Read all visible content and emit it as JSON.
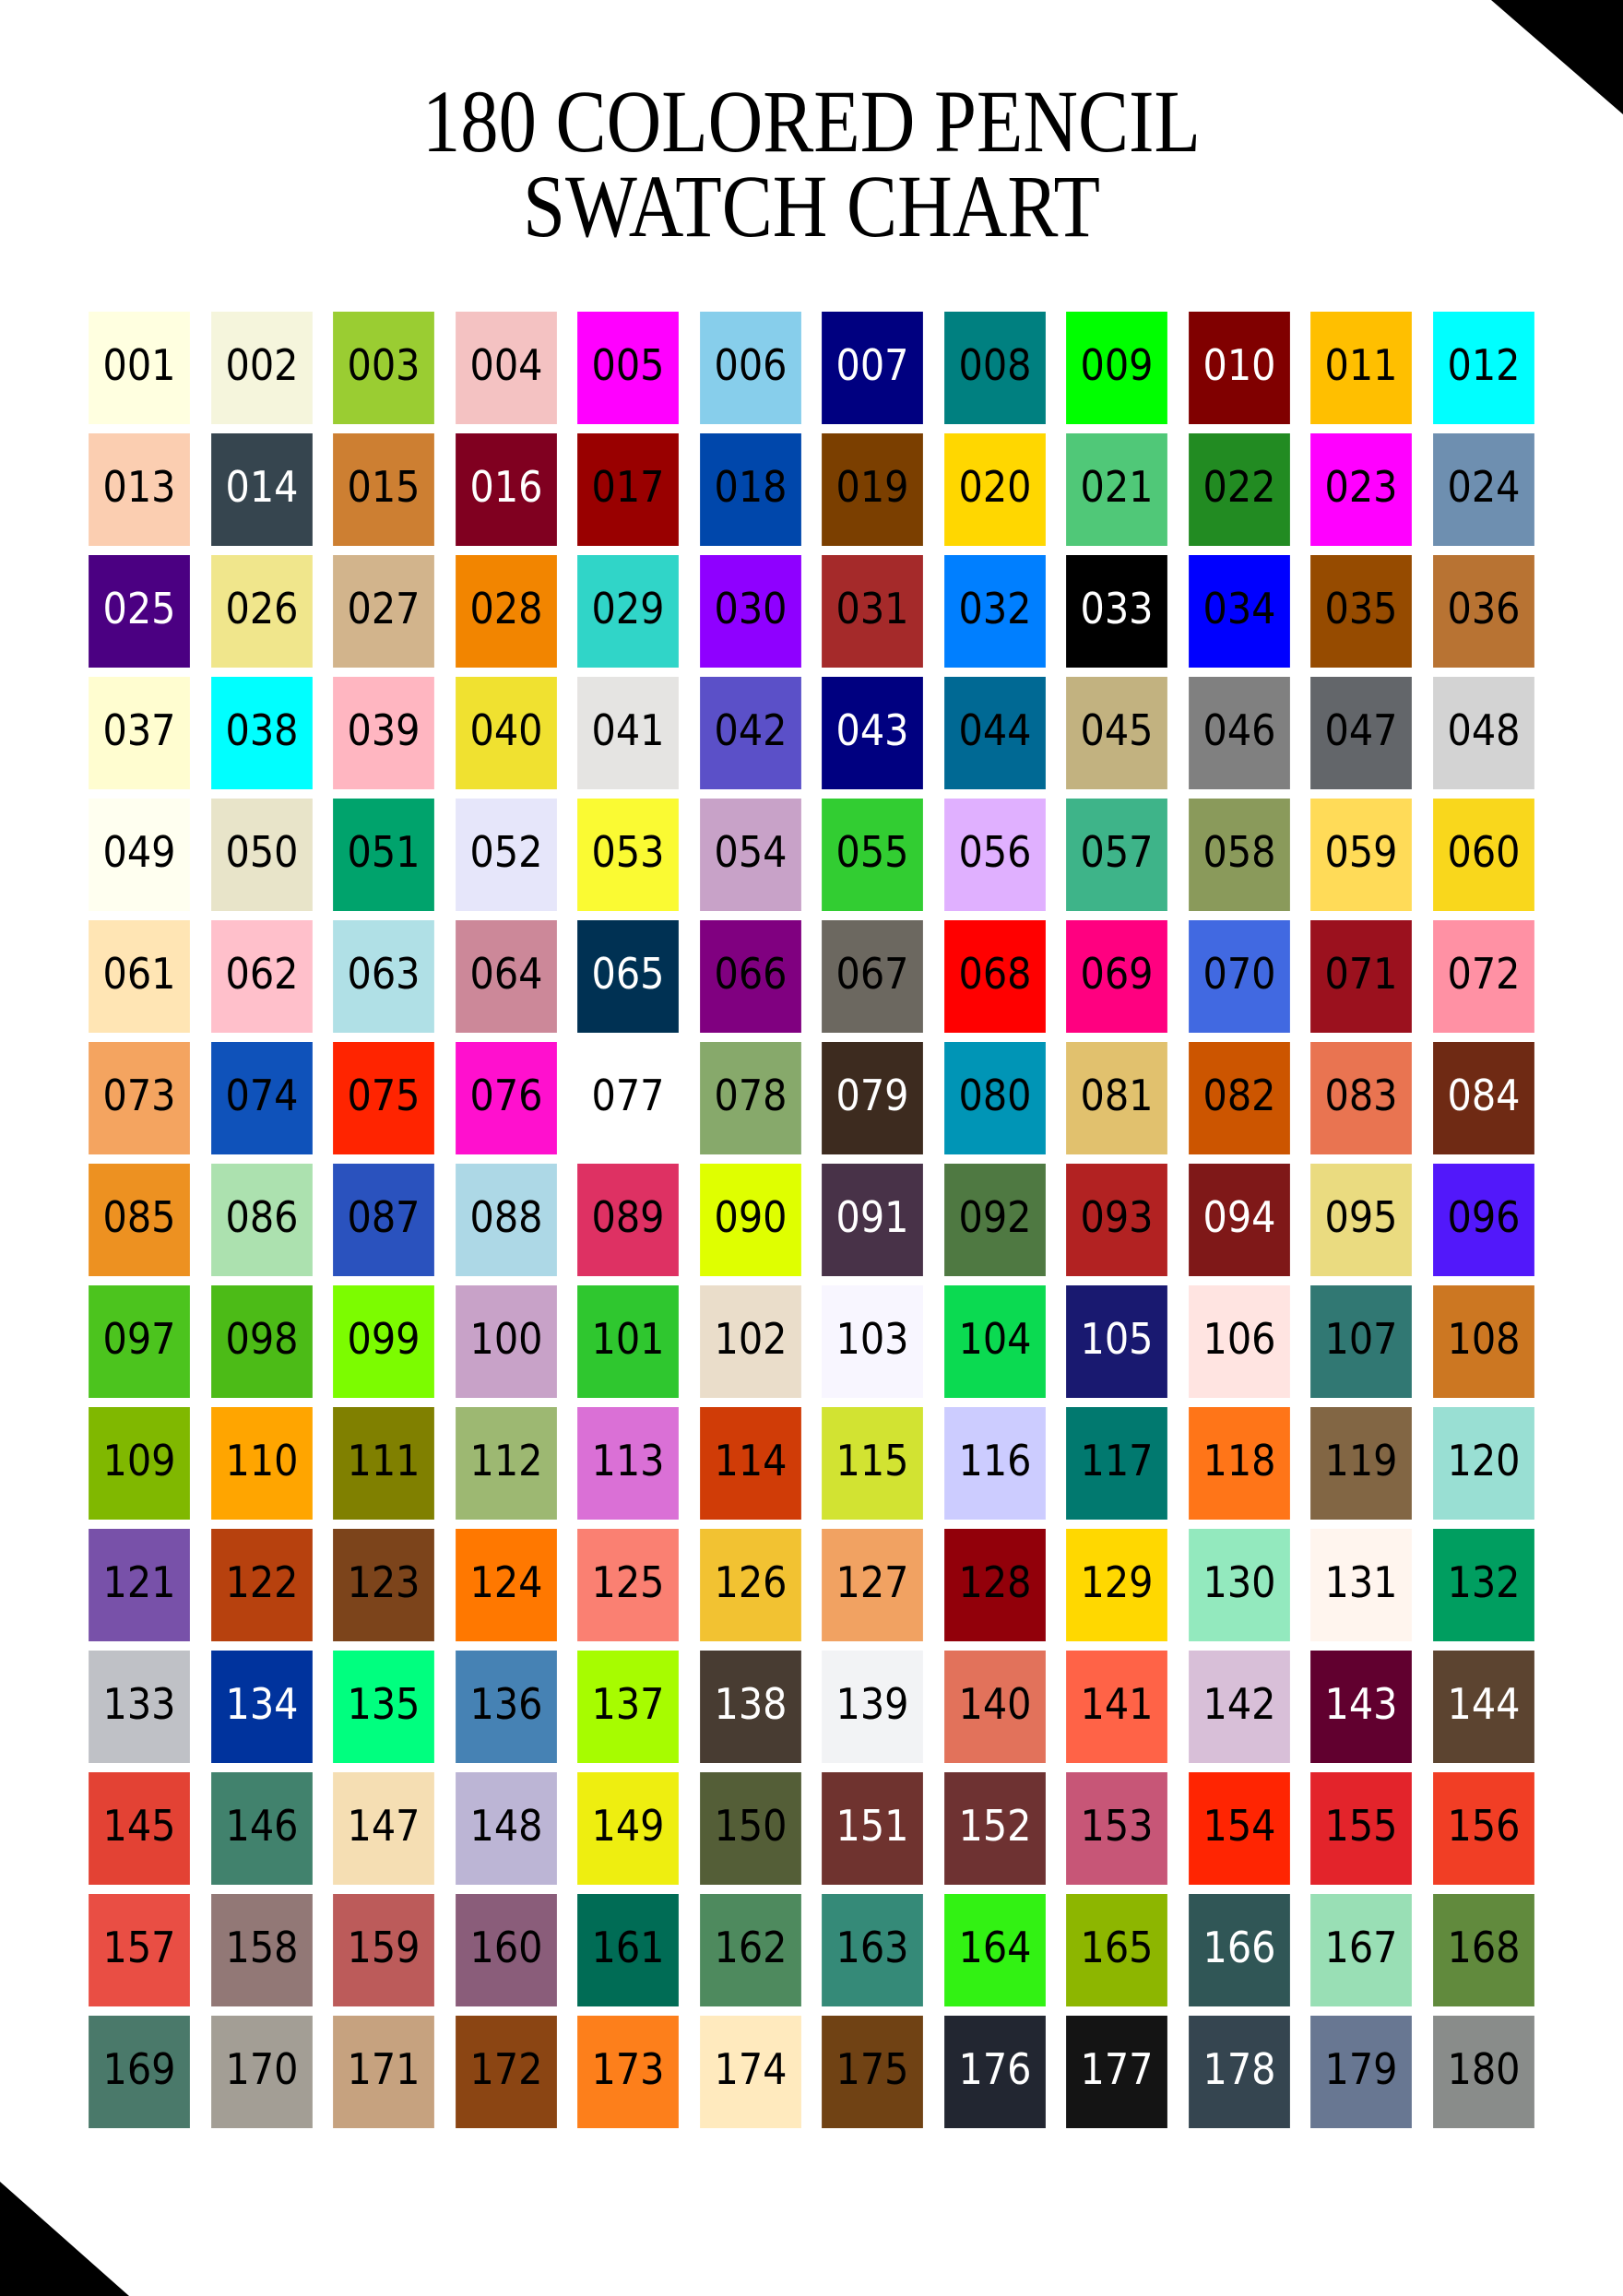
{
  "title": {
    "line1": "180 COLORED PENCIL",
    "line2": "SWATCH CHART"
  },
  "white_label_swatches": [
    "007",
    "010",
    "014",
    "016",
    "025",
    "033",
    "043",
    "065",
    "079",
    "084",
    "091",
    "094",
    "105",
    "134",
    "138",
    "143",
    "144",
    "151",
    "152",
    "166",
    "176",
    "177",
    "178"
  ],
  "swatches": [
    {
      "label": "001",
      "color": "#FFFFE0"
    },
    {
      "label": "002",
      "color": "#F5F5DC"
    },
    {
      "label": "003",
      "color": "#9ACD32"
    },
    {
      "label": "004",
      "color": "#F4C2C2"
    },
    {
      "label": "005",
      "color": "#FF00FF"
    },
    {
      "label": "006",
      "color": "#87CEEB"
    },
    {
      "label": "007",
      "color": "#000080"
    },
    {
      "label": "008",
      "color": "#008080"
    },
    {
      "label": "009",
      "color": "#00FF00"
    },
    {
      "label": "010",
      "color": "#800000"
    },
    {
      "label": "011",
      "color": "#FFBF00"
    },
    {
      "label": "012",
      "color": "#00FFFF"
    },
    {
      "label": "013",
      "color": "#FBCEB1"
    },
    {
      "label": "014",
      "color": "#36454F"
    },
    {
      "label": "015",
      "color": "#CD7F32"
    },
    {
      "label": "016",
      "color": "#800020"
    },
    {
      "label": "017",
      "color": "#990000"
    },
    {
      "label": "018",
      "color": "#0047AB"
    },
    {
      "label": "019",
      "color": "#7B3F00"
    },
    {
      "label": "020",
      "color": "#FFD700"
    },
    {
      "label": "021",
      "color": "#50C878"
    },
    {
      "label": "022",
      "color": "#228B22"
    },
    {
      "label": "023",
      "color": "#FF00FF"
    },
    {
      "label": "024",
      "color": "#6E8FB0"
    },
    {
      "label": "025",
      "color": "#4B0082"
    },
    {
      "label": "026",
      "color": "#F0E68C"
    },
    {
      "label": "027",
      "color": "#D2B48C"
    },
    {
      "label": "028",
      "color": "#F28500"
    },
    {
      "label": "029",
      "color": "#30D5C8"
    },
    {
      "label": "030",
      "color": "#8F00FF"
    },
    {
      "label": "031",
      "color": "#A52A2A"
    },
    {
      "label": "032",
      "color": "#007FFF"
    },
    {
      "label": "033",
      "color": "#000000"
    },
    {
      "label": "034",
      "color": "#0000FF"
    },
    {
      "label": "035",
      "color": "#964B00"
    },
    {
      "label": "036",
      "color": "#B87333"
    },
    {
      "label": "037",
      "color": "#FFFDD0"
    },
    {
      "label": "038",
      "color": "#00FFFF"
    },
    {
      "label": "039",
      "color": "#FFB6C1"
    },
    {
      "label": "040",
      "color": "#F0E130"
    },
    {
      "label": "041",
      "color": "#E5E4E2"
    },
    {
      "label": "042",
      "color": "#5B50C8"
    },
    {
      "label": "043",
      "color": "#000080"
    },
    {
      "label": "044",
      "color": "#006994"
    },
    {
      "label": "045",
      "color": "#C2B280"
    },
    {
      "label": "046",
      "color": "#808080"
    },
    {
      "label": "047",
      "color": "#63666A"
    },
    {
      "label": "048",
      "color": "#D3D3D3"
    },
    {
      "label": "049",
      "color": "#FFFFF0"
    },
    {
      "label": "050",
      "color": "#E8E4C9"
    },
    {
      "label": "051",
      "color": "#00A36C"
    },
    {
      "label": "052",
      "color": "#E6E6FA"
    },
    {
      "label": "053",
      "color": "#FAFA33"
    },
    {
      "label": "054",
      "color": "#C8A2C8"
    },
    {
      "label": "055",
      "color": "#32CD32"
    },
    {
      "label": "056",
      "color": "#E0B0FF"
    },
    {
      "label": "057",
      "color": "#3EB489"
    },
    {
      "label": "058",
      "color": "#8A9A5B"
    },
    {
      "label": "059",
      "color": "#FFDB58"
    },
    {
      "label": "060",
      "color": "#F9D71C"
    },
    {
      "label": "061",
      "color": "#FFE5B4"
    },
    {
      "label": "062",
      "color": "#FFC0CB"
    },
    {
      "label": "063",
      "color": "#B0E0E6"
    },
    {
      "label": "064",
      "color": "#CC8899"
    },
    {
      "label": "065",
      "color": "#003153"
    },
    {
      "label": "066",
      "color": "#800080"
    },
    {
      "label": "067",
      "color": "#6C6860"
    },
    {
      "label": "068",
      "color": "#FF0000"
    },
    {
      "label": "069",
      "color": "#FF0080"
    },
    {
      "label": "070",
      "color": "#4169E1"
    },
    {
      "label": "071",
      "color": "#9B111E"
    },
    {
      "label": "072",
      "color": "#FF91A4"
    },
    {
      "label": "073",
      "color": "#F4A460"
    },
    {
      "label": "074",
      "color": "#0F52BA"
    },
    {
      "label": "075",
      "color": "#FF2400"
    },
    {
      "label": "076",
      "color": "#FF10CE"
    },
    {
      "label": "077",
      "color": "#FFFFFF"
    },
    {
      "label": "078",
      "color": "#87A96B"
    },
    {
      "label": "079",
      "color": "#3D2B1F"
    },
    {
      "label": "080",
      "color": "#0095B6"
    },
    {
      "label": "081",
      "color": "#E1C16E"
    },
    {
      "label": "082",
      "color": "#CC5500"
    },
    {
      "label": "083",
      "color": "#E97451"
    },
    {
      "label": "084",
      "color": "#6F2A14"
    },
    {
      "label": "085",
      "color": "#ED9121"
    },
    {
      "label": "086",
      "color": "#ACE1AF"
    },
    {
      "label": "087",
      "color": "#2A52BE"
    },
    {
      "label": "088",
      "color": "#ADD8E6"
    },
    {
      "label": "089",
      "color": "#DE3163"
    },
    {
      "label": "090",
      "color": "#DFFF00"
    },
    {
      "label": "091",
      "color": "#483248"
    },
    {
      "label": "092",
      "color": "#4F7942"
    },
    {
      "label": "093",
      "color": "#B22222"
    },
    {
      "label": "094",
      "color": "#7F1818"
    },
    {
      "label": "095",
      "color": "#EADB80"
    },
    {
      "label": "096",
      "color": "#5218FA"
    },
    {
      "label": "097",
      "color": "#4CC41E"
    },
    {
      "label": "098",
      "color": "#4CBB17"
    },
    {
      "label": "099",
      "color": "#7CFC00"
    },
    {
      "label": "100",
      "color": "#C8A2C8"
    },
    {
      "label": "101",
      "color": "#2FC72F"
    },
    {
      "label": "102",
      "color": "#EADDCA"
    },
    {
      "label": "103",
      "color": "#F8F6FF"
    },
    {
      "label": "104",
      "color": "#0BDA51"
    },
    {
      "label": "105",
      "color": "#191970"
    },
    {
      "label": "106",
      "color": "#FFE4E1"
    },
    {
      "label": "107",
      "color": "#317873"
    },
    {
      "label": "108",
      "color": "#CC7722"
    },
    {
      "label": "109",
      "color": "#80B800"
    },
    {
      "label": "110",
      "color": "#FFA500"
    },
    {
      "label": "111",
      "color": "#808000"
    },
    {
      "label": "112",
      "color": "#9DB872"
    },
    {
      "label": "113",
      "color": "#DA70D6"
    },
    {
      "label": "114",
      "color": "#D03C07"
    },
    {
      "label": "115",
      "color": "#D2E332"
    },
    {
      "label": "116",
      "color": "#CCCCFF"
    },
    {
      "label": "117",
      "color": "#01796F"
    },
    {
      "label": "118",
      "color": "#FF7518"
    },
    {
      "label": "119",
      "color": "#826644"
    },
    {
      "label": "120",
      "color": "#99DFD3"
    },
    {
      "label": "121",
      "color": "#7851A9"
    },
    {
      "label": "122",
      "color": "#B7410E"
    },
    {
      "label": "123",
      "color": "#7C441B"
    },
    {
      "label": "124",
      "color": "#FF7800"
    },
    {
      "label": "125",
      "color": "#FA8072"
    },
    {
      "label": "126",
      "color": "#F2C232"
    },
    {
      "label": "127",
      "color": "#F1A262"
    },
    {
      "label": "128",
      "color": "#92000A"
    },
    {
      "label": "129",
      "color": "#FFD800"
    },
    {
      "label": "130",
      "color": "#93E9BE"
    },
    {
      "label": "131",
      "color": "#FFF5EE"
    },
    {
      "label": "132",
      "color": "#009E60"
    },
    {
      "label": "133",
      "color": "#BFC1C6"
    },
    {
      "label": "134",
      "color": "#00339D"
    },
    {
      "label": "135",
      "color": "#00FF7F"
    },
    {
      "label": "136",
      "color": "#4682B4"
    },
    {
      "label": "137",
      "color": "#A7FC00"
    },
    {
      "label": "138",
      "color": "#483C32"
    },
    {
      "label": "139",
      "color": "#F2F3F5"
    },
    {
      "label": "140",
      "color": "#E2725B"
    },
    {
      "label": "141",
      "color": "#FF6347"
    },
    {
      "label": "142",
      "color": "#D8BFD8"
    },
    {
      "label": "143",
      "color": "#61002F"
    },
    {
      "label": "144",
      "color": "#5C4430"
    },
    {
      "label": "145",
      "color": "#E34234"
    },
    {
      "label": "146",
      "color": "#41826D"
    },
    {
      "label": "147",
      "color": "#F5DEB3"
    },
    {
      "label": "148",
      "color": "#BCB5D5"
    },
    {
      "label": "149",
      "color": "#EEEE10"
    },
    {
      "label": "150",
      "color": "#545E37"
    },
    {
      "label": "151",
      "color": "#6F332F"
    },
    {
      "label": "152",
      "color": "#6E3232"
    },
    {
      "label": "153",
      "color": "#C75677"
    },
    {
      "label": "154",
      "color": "#FF2502"
    },
    {
      "label": "155",
      "color": "#E3242B"
    },
    {
      "label": "156",
      "color": "#F13E25"
    },
    {
      "label": "157",
      "color": "#E94E44"
    },
    {
      "label": "158",
      "color": "#927876"
    },
    {
      "label": "159",
      "color": "#BC5B5A"
    },
    {
      "label": "160",
      "color": "#8A5D7A"
    },
    {
      "label": "161",
      "color": "#006C55"
    },
    {
      "label": "162",
      "color": "#4E8A5E"
    },
    {
      "label": "163",
      "color": "#358A78"
    },
    {
      "label": "164",
      "color": "#32F213"
    },
    {
      "label": "165",
      "color": "#8DB600"
    },
    {
      "label": "166",
      "color": "#305656"
    },
    {
      "label": "167",
      "color": "#99DFB5"
    },
    {
      "label": "168",
      "color": "#618A3D"
    },
    {
      "label": "169",
      "color": "#4A796A"
    },
    {
      "label": "170",
      "color": "#A39E95"
    },
    {
      "label": "171",
      "color": "#C6A27F"
    },
    {
      "label": "172",
      "color": "#8B4513"
    },
    {
      "label": "173",
      "color": "#FD7F1B"
    },
    {
      "label": "174",
      "color": "#FFEABE"
    },
    {
      "label": "175",
      "color": "#704214"
    },
    {
      "label": "176",
      "color": "#222631"
    },
    {
      "label": "177",
      "color": "#141414"
    },
    {
      "label": "178",
      "color": "#354550"
    },
    {
      "label": "179",
      "color": "#687792"
    },
    {
      "label": "180",
      "color": "#898C8A"
    }
  ]
}
